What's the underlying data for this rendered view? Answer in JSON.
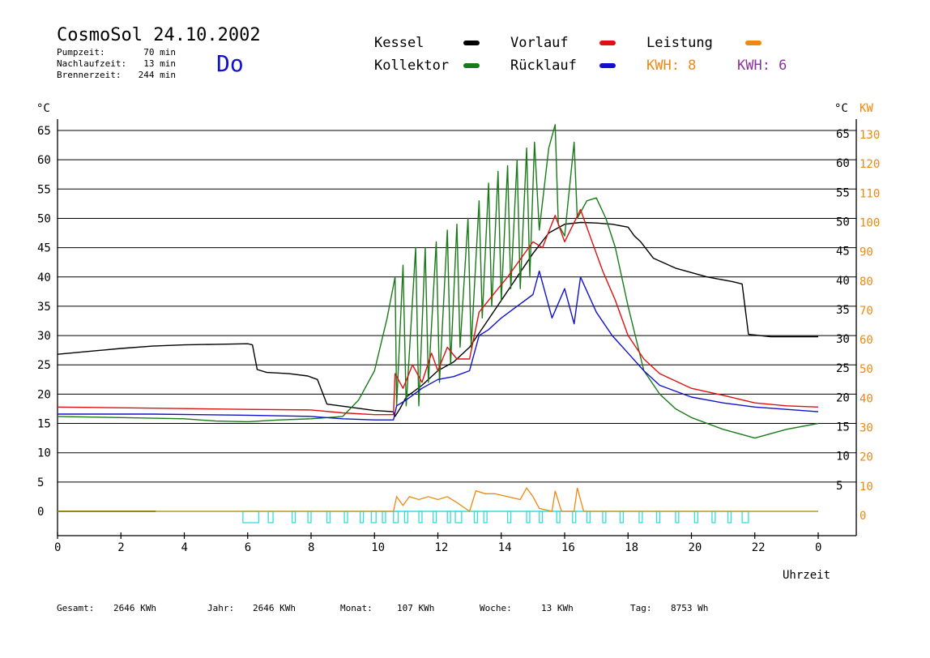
{
  "header": {
    "title": "CosmoSol 24.10.2002",
    "day": "Do",
    "pumpzeit_label": "Pumpzeit:",
    "pumpzeit_value": "70 min",
    "nachlauf_label": "Nachlaufzeit:",
    "nachlauf_value": "13 min",
    "brenner_label": "Brennerzeit:",
    "brenner_value": "244 min"
  },
  "legend": {
    "kessel": "Kessel",
    "kollektor": "Kollektor",
    "vorlauf": "Vorlauf",
    "ruecklauf": "Rücklauf",
    "leistung": "Leistung",
    "kwh1": "KWH: 8",
    "kwh2": "KWH: 6"
  },
  "colors": {
    "kessel": "#000000",
    "kollektor": "#1a7a1a",
    "vorlauf": "#dd1111",
    "ruecklauf": "#1111cc",
    "leistung": "#ee8811",
    "kwh2": "#883399",
    "cyan": "#33dddd",
    "axis": "#000000"
  },
  "footer": {
    "gesamt_label": "Gesamt:",
    "gesamt_value": "2646 KWh",
    "jahr_label": "Jahr:",
    "jahr_value": "2646 KWh",
    "monat_label": "Monat:",
    "monat_value": "107 KWh",
    "woche_label": "Woche:",
    "woche_value": "13 KWh",
    "tag_label": "Tag:",
    "tag_value": "8753 Wh"
  },
  "chart_data": {
    "type": "line",
    "xlabel": "Uhrzeit",
    "ylabel_left": "°C",
    "ylabel_right_temp": "°C",
    "ylabel_right_power": "KW",
    "x_ticks": [
      "0",
      "2",
      "4",
      "6",
      "8",
      "10",
      "12",
      "14",
      "16",
      "18",
      "20",
      "22",
      "0"
    ],
    "xlim": [
      0,
      24
    ],
    "y_ticks_left": [
      0,
      5,
      10,
      15,
      20,
      25,
      30,
      35,
      40,
      45,
      50,
      55,
      60,
      65
    ],
    "y_ticks_right_temp": [
      5,
      10,
      15,
      20,
      25,
      30,
      35,
      40,
      45,
      50,
      55,
      60,
      65
    ],
    "y_ticks_right_power": [
      0,
      10,
      20,
      30,
      40,
      50,
      60,
      70,
      80,
      90,
      100,
      110,
      120,
      130
    ],
    "ylim": [
      0,
      65
    ],
    "grid": true,
    "series": [
      {
        "name": "Kessel",
        "key": "kessel",
        "points": [
          [
            0,
            26.8
          ],
          [
            1,
            27.3
          ],
          [
            2,
            27.8
          ],
          [
            3,
            28.2
          ],
          [
            4,
            28.4
          ],
          [
            5,
            28.5
          ],
          [
            6,
            28.6
          ],
          [
            6.15,
            28.4
          ],
          [
            6.3,
            24.2
          ],
          [
            6.6,
            23.7
          ],
          [
            7.3,
            23.5
          ],
          [
            7.9,
            23.1
          ],
          [
            8.2,
            22.5
          ],
          [
            8.5,
            18.3
          ],
          [
            9.2,
            17.8
          ],
          [
            10,
            17.2
          ],
          [
            10.6,
            17
          ],
          [
            10.65,
            16.2
          ],
          [
            10.8,
            17.5
          ],
          [
            11,
            19.5
          ],
          [
            11.5,
            21.5
          ],
          [
            12,
            24
          ],
          [
            12.5,
            25.5
          ],
          [
            13,
            28
          ],
          [
            13.5,
            32
          ],
          [
            14,
            36
          ],
          [
            14.5,
            40
          ],
          [
            15,
            44
          ],
          [
            15.5,
            47.5
          ],
          [
            16,
            49
          ],
          [
            16.5,
            49.3
          ],
          [
            17,
            49.2
          ],
          [
            17.5,
            49
          ],
          [
            18,
            48.5
          ],
          [
            18.2,
            47
          ],
          [
            18.4,
            46
          ],
          [
            18.8,
            43.2
          ],
          [
            19.5,
            41.5
          ],
          [
            20.5,
            40
          ],
          [
            21.3,
            39.2
          ],
          [
            21.6,
            38.8
          ],
          [
            21.8,
            30.2
          ],
          [
            22.5,
            29.8
          ],
          [
            24,
            29.8
          ]
        ]
      },
      {
        "name": "Kollektor",
        "key": "kollektor",
        "points": [
          [
            0,
            16.2
          ],
          [
            2,
            16
          ],
          [
            4,
            15.8
          ],
          [
            5,
            15.4
          ],
          [
            6,
            15.3
          ],
          [
            7,
            15.6
          ],
          [
            8,
            15.8
          ],
          [
            9,
            16.2
          ],
          [
            9.5,
            19
          ],
          [
            10,
            24
          ],
          [
            10.4,
            33
          ],
          [
            10.65,
            40
          ],
          [
            10.7,
            18
          ],
          [
            10.9,
            42
          ],
          [
            11,
            18
          ],
          [
            11.3,
            45
          ],
          [
            11.4,
            18
          ],
          [
            11.6,
            45
          ],
          [
            11.7,
            22
          ],
          [
            11.95,
            46
          ],
          [
            12.05,
            22
          ],
          [
            12.3,
            48
          ],
          [
            12.4,
            25
          ],
          [
            12.6,
            49
          ],
          [
            12.7,
            28
          ],
          [
            12.95,
            50
          ],
          [
            13.05,
            28
          ],
          [
            13.3,
            53
          ],
          [
            13.4,
            33
          ],
          [
            13.6,
            56
          ],
          [
            13.7,
            35
          ],
          [
            13.9,
            58
          ],
          [
            14,
            36
          ],
          [
            14.2,
            59
          ],
          [
            14.3,
            38
          ],
          [
            14.5,
            60
          ],
          [
            14.6,
            38
          ],
          [
            14.8,
            62
          ],
          [
            14.9,
            40
          ],
          [
            15.05,
            63
          ],
          [
            15.2,
            48
          ],
          [
            15.5,
            62
          ],
          [
            15.7,
            66
          ],
          [
            15.8,
            49
          ],
          [
            16,
            47
          ],
          [
            16.3,
            63
          ],
          [
            16.4,
            50
          ],
          [
            16.7,
            53
          ],
          [
            17,
            53.5
          ],
          [
            17.3,
            50
          ],
          [
            17.6,
            45
          ],
          [
            18,
            35
          ],
          [
            18.5,
            24
          ],
          [
            19,
            20
          ],
          [
            19.5,
            17.5
          ],
          [
            20,
            16
          ],
          [
            21,
            14
          ],
          [
            22,
            12.5
          ],
          [
            23,
            14
          ],
          [
            24,
            15
          ]
        ]
      },
      {
        "name": "Vorlauf",
        "key": "vorlauf",
        "points": [
          [
            0,
            17.8
          ],
          [
            3,
            17.6
          ],
          [
            6,
            17.4
          ],
          [
            8,
            17.3
          ],
          [
            9,
            16.8
          ],
          [
            10,
            16.5
          ],
          [
            10.6,
            16.5
          ],
          [
            10.65,
            23.5
          ],
          [
            10.9,
            21
          ],
          [
            11.2,
            25
          ],
          [
            11.5,
            22
          ],
          [
            11.8,
            27
          ],
          [
            12,
            24
          ],
          [
            12.3,
            28
          ],
          [
            12.6,
            26
          ],
          [
            13,
            26
          ],
          [
            13.3,
            34
          ],
          [
            13.6,
            36
          ],
          [
            13.9,
            38
          ],
          [
            14.2,
            40
          ],
          [
            14.6,
            43
          ],
          [
            15,
            46
          ],
          [
            15.3,
            45
          ],
          [
            15.7,
            50.5
          ],
          [
            16,
            46
          ],
          [
            16.5,
            51.5
          ],
          [
            16.8,
            47
          ],
          [
            17.2,
            41
          ],
          [
            17.6,
            36
          ],
          [
            18,
            30
          ],
          [
            18.5,
            26
          ],
          [
            19,
            23.5
          ],
          [
            20,
            21
          ],
          [
            21,
            19.8
          ],
          [
            22,
            18.5
          ],
          [
            23,
            18
          ],
          [
            24,
            17.8
          ]
        ]
      },
      {
        "name": "Rücklauf",
        "key": "ruecklauf",
        "points": [
          [
            0,
            16.6
          ],
          [
            3,
            16.6
          ],
          [
            6,
            16.4
          ],
          [
            8,
            16.2
          ],
          [
            9,
            15.8
          ],
          [
            10,
            15.6
          ],
          [
            10.6,
            15.6
          ],
          [
            10.7,
            18
          ],
          [
            11,
            19
          ],
          [
            11.5,
            21
          ],
          [
            12,
            22.5
          ],
          [
            12.5,
            23
          ],
          [
            13,
            24
          ],
          [
            13.3,
            30
          ],
          [
            13.6,
            31
          ],
          [
            14,
            33
          ],
          [
            14.5,
            35
          ],
          [
            15,
            37
          ],
          [
            15.2,
            41
          ],
          [
            15.6,
            33
          ],
          [
            16,
            38
          ],
          [
            16.3,
            32
          ],
          [
            16.5,
            40
          ],
          [
            17,
            34
          ],
          [
            17.5,
            30
          ],
          [
            18,
            27
          ],
          [
            18.5,
            24
          ],
          [
            19,
            21.5
          ],
          [
            20,
            19.5
          ],
          [
            21,
            18.5
          ],
          [
            22,
            17.8
          ],
          [
            23,
            17.4
          ],
          [
            24,
            17
          ]
        ]
      }
    ],
    "power": {
      "name": "Leistung",
      "key": "leistung",
      "points": [
        [
          0,
          0
        ],
        [
          10.6,
          0
        ],
        [
          10.7,
          5
        ],
        [
          10.9,
          2
        ],
        [
          11.1,
          5
        ],
        [
          11.4,
          4
        ],
        [
          11.7,
          5
        ],
        [
          12,
          4
        ],
        [
          12.3,
          5
        ],
        [
          12.6,
          3
        ],
        [
          13,
          0
        ],
        [
          13.2,
          7
        ],
        [
          13.5,
          6
        ],
        [
          13.8,
          6
        ],
        [
          14.2,
          5
        ],
        [
          14.6,
          4
        ],
        [
          14.8,
          8
        ],
        [
          15,
          5
        ],
        [
          15.2,
          1
        ],
        [
          15.6,
          0
        ],
        [
          15.7,
          7
        ],
        [
          15.9,
          0
        ],
        [
          16.3,
          0
        ],
        [
          16.4,
          8
        ],
        [
          16.6,
          0
        ],
        [
          24,
          0
        ]
      ]
    },
    "pump_intervals_h": [
      [
        5.85,
        6.35
      ],
      [
        6.65,
        6.8
      ],
      [
        7.4,
        7.5
      ],
      [
        7.9,
        8
      ],
      [
        8.5,
        8.6
      ],
      [
        9.05,
        9.15
      ],
      [
        9.55,
        9.65
      ],
      [
        9.9,
        10.05
      ],
      [
        10.25,
        10.35
      ],
      [
        10.6,
        10.75
      ],
      [
        10.95,
        11.05
      ],
      [
        11.4,
        11.5
      ],
      [
        11.85,
        11.95
      ],
      [
        12.3,
        12.4
      ],
      [
        12.55,
        12.75
      ],
      [
        13.15,
        13.25
      ],
      [
        13.45,
        13.55
      ],
      [
        14.2,
        14.3
      ],
      [
        14.8,
        14.9
      ],
      [
        15.2,
        15.3
      ],
      [
        15.75,
        15.85
      ],
      [
        16.25,
        16.35
      ],
      [
        16.7,
        16.8
      ],
      [
        17.2,
        17.3
      ],
      [
        17.75,
        17.85
      ],
      [
        18.35,
        18.45
      ],
      [
        18.9,
        19
      ],
      [
        19.5,
        19.6
      ],
      [
        20.1,
        20.2
      ],
      [
        20.65,
        20.75
      ],
      [
        21.15,
        21.25
      ],
      [
        21.6,
        21.8
      ]
    ]
  }
}
